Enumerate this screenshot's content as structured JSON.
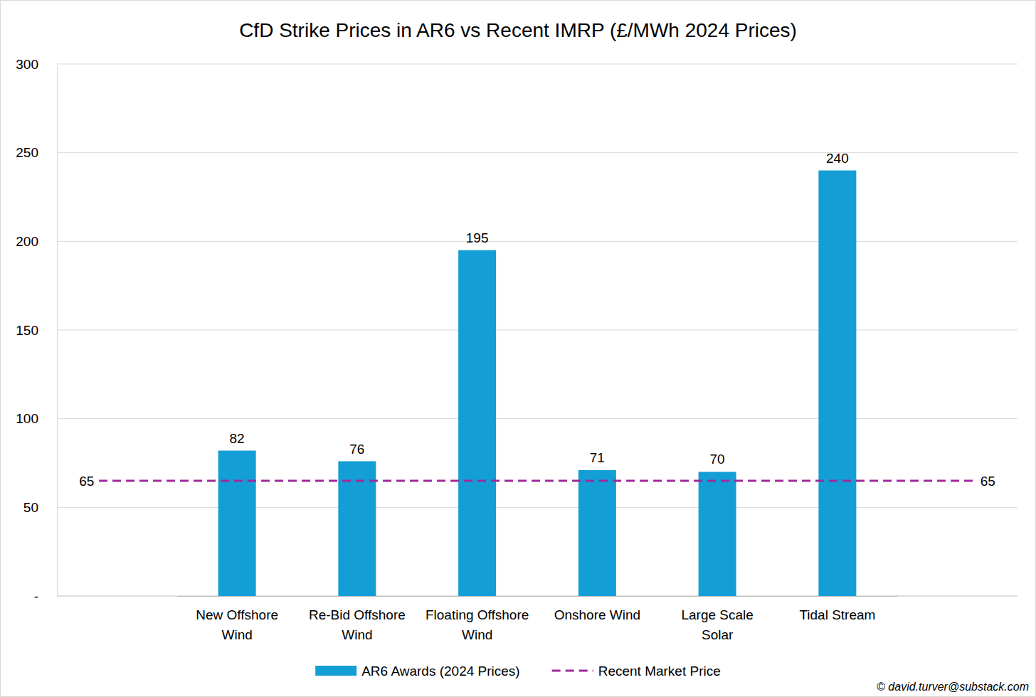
{
  "chart_data": {
    "type": "bar",
    "title": "CfD Strike Prices in AR6 vs Recent IMRP (£/MWh 2024 Prices)",
    "categories": [
      "New Offshore Wind",
      "Re-Bid Offshore Wind",
      "Floating Offshore Wind",
      "Onshore Wind",
      "Large Scale Solar",
      "Tidal Stream"
    ],
    "series": [
      {
        "name": "AR6 Awards (2024 Prices)",
        "type": "bar",
        "color": "#139ed6",
        "values": [
          82,
          76,
          195,
          71,
          70,
          240
        ]
      }
    ],
    "reference_lines": [
      {
        "name": "Recent Market Price",
        "value": 65,
        "color": "#9e2a9b",
        "line_style": "dashed"
      }
    ],
    "ylim": [
      0,
      300
    ],
    "yticks": [
      {
        "value": 0,
        "label": "-"
      },
      50,
      100,
      150,
      200,
      250,
      300
    ],
    "grid": true,
    "data_labels": true,
    "legend": "bottom",
    "credit": "© david.turver@substack.com"
  }
}
